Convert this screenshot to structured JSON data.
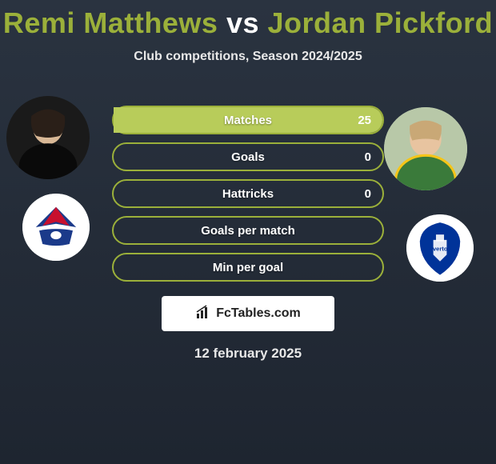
{
  "title_color": "#9bb03a",
  "player1": {
    "name": "Remi Matthews"
  },
  "vs_text": "vs",
  "player2": {
    "name": "Jordan Pickford"
  },
  "subtitle": "Club competitions, Season 2024/2025",
  "bars": {
    "border_color": "#9bb03a",
    "fill_left_color": "#7a9030",
    "fill_right_color": "#b8cc5a",
    "items": [
      {
        "label": "Matches",
        "left": "",
        "right": "25",
        "left_pct": 0,
        "right_pct": 100
      },
      {
        "label": "Goals",
        "left": "",
        "right": "0",
        "left_pct": 0,
        "right_pct": 0
      },
      {
        "label": "Hattricks",
        "left": "",
        "right": "0",
        "left_pct": 0,
        "right_pct": 0
      },
      {
        "label": "Goals per match",
        "left": "",
        "right": "",
        "left_pct": 0,
        "right_pct": 0
      },
      {
        "label": "Min per goal",
        "left": "",
        "right": "",
        "left_pct": 0,
        "right_pct": 0
      }
    ]
  },
  "footer_brand": "FcTables.com",
  "date": "12 february 2025",
  "club1_colors": {
    "primary": "#1b3a8a",
    "accent": "#c8102e"
  },
  "club2_colors": {
    "primary": "#003399"
  }
}
